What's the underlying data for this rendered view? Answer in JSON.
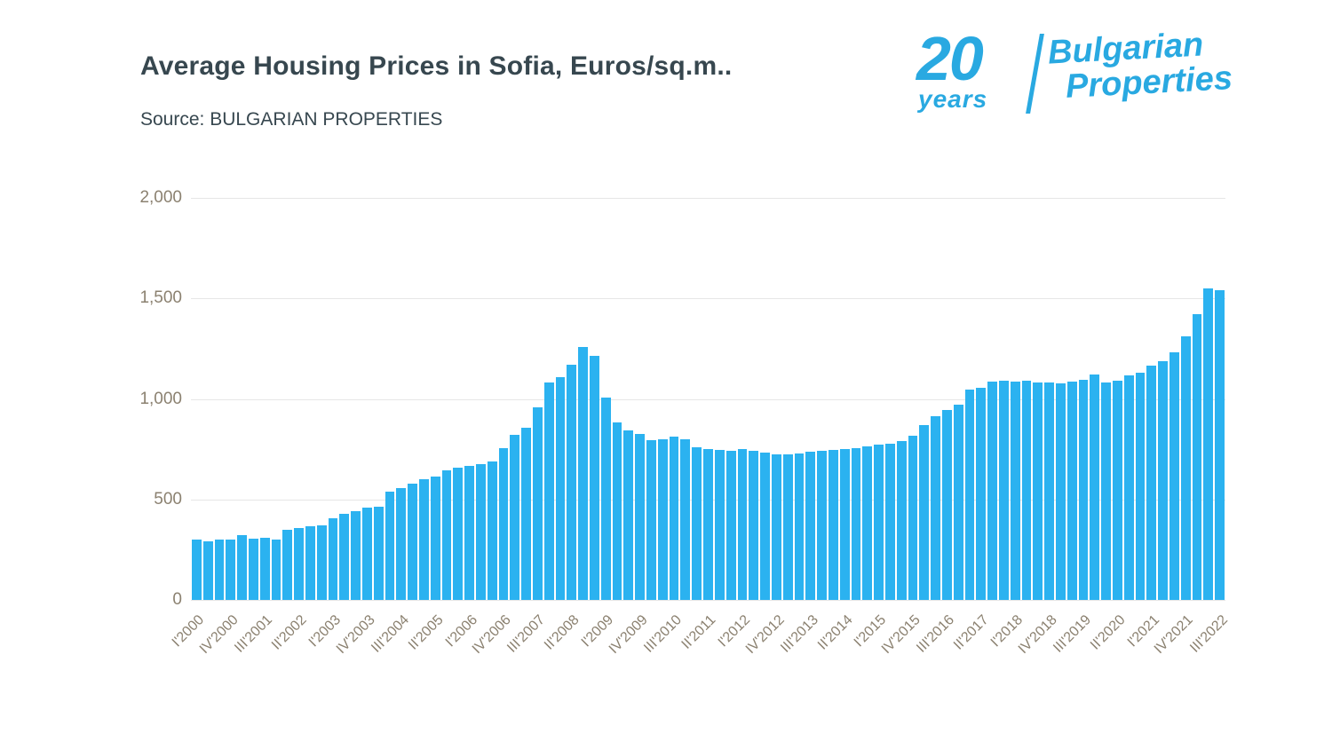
{
  "header": {
    "title": "Average Housing Prices in Sofia, Euros/sq.m..",
    "source": "Source: BULGARIAN PROPERTIES"
  },
  "logo": {
    "number": "20",
    "years": "years",
    "word1": "Bulgarian",
    "word2": "Properties",
    "color": "#29a9e1"
  },
  "chart_data": {
    "type": "bar",
    "title": "Average Housing Prices in Sofia, Euros/sq.m..",
    "xlabel": "",
    "ylabel": "",
    "ylim": [
      0,
      2000
    ],
    "yticks": [
      0,
      500,
      1000,
      1500,
      2000
    ],
    "ytick_labels": [
      "0",
      "500",
      "1,000",
      "1,500",
      "2,000"
    ],
    "grid": true,
    "legend": "none",
    "bar_color": "#2bb2f0",
    "x_label_every": 3,
    "categories": [
      "I'2000",
      "II'2000",
      "III'2000",
      "IV'2000",
      "I'2001",
      "II'2001",
      "III'2001",
      "IV'2001",
      "I'2002",
      "II'2002",
      "III'2002",
      "IV'2002",
      "I'2003",
      "II'2003",
      "III'2003",
      "IV'2003",
      "I'2004",
      "II'2004",
      "III'2004",
      "IV'2004",
      "I'2005",
      "II'2005",
      "III'2005",
      "IV'2005",
      "I'2006",
      "II'2006",
      "III'2006",
      "IV'2006",
      "I'2007",
      "II'2007",
      "III'2007",
      "IV'2007",
      "I'2008",
      "II'2008",
      "III'2008",
      "IV'2008",
      "I'2009",
      "II'2009",
      "III'2009",
      "IV'2009",
      "I'2010",
      "II'2010",
      "III'2010",
      "IV'2010",
      "I'2011",
      "II'2011",
      "III'2011",
      "IV'2011",
      "I'2012",
      "II'2012",
      "III'2012",
      "IV'2012",
      "I'2013",
      "II'2013",
      "III'2013",
      "IV'2013",
      "I'2014",
      "II'2014",
      "III'2014",
      "IV'2014",
      "I'2015",
      "II'2015",
      "III'2015",
      "IV'2015",
      "I'2016",
      "II'2016",
      "III'2016",
      "IV'2016",
      "I'2017",
      "II'2017",
      "III'2017",
      "IV'2017",
      "I'2018",
      "II'2018",
      "III'2018",
      "IV'2018",
      "I'2019",
      "II'2019",
      "III'2019",
      "IV'2019",
      "I'2020",
      "II'2020",
      "III'2020",
      "IV'2020",
      "I'2021",
      "II'2021",
      "III'2021",
      "IV'2021",
      "I'2022",
      "II'2022",
      "III'2022"
    ],
    "values": [
      300,
      293,
      300,
      300,
      323,
      303,
      310,
      300,
      350,
      358,
      365,
      373,
      405,
      428,
      440,
      458,
      462,
      538,
      555,
      577,
      600,
      614,
      645,
      660,
      665,
      676,
      690,
      755,
      820,
      855,
      958,
      1080,
      1110,
      1172,
      1260,
      1212,
      1008,
      885,
      842,
      825,
      795,
      800,
      814,
      800,
      760,
      750,
      747,
      742,
      750,
      742,
      735,
      726,
      722,
      730,
      736,
      742,
      747,
      752,
      757,
      766,
      772,
      778,
      792,
      816,
      870,
      916,
      946,
      972,
      1048,
      1056,
      1086,
      1092,
      1086,
      1092,
      1082,
      1080,
      1076,
      1086,
      1096,
      1120,
      1080,
      1092,
      1116,
      1132,
      1165,
      1186,
      1230,
      1310,
      1420,
      1548,
      1540
    ]
  }
}
